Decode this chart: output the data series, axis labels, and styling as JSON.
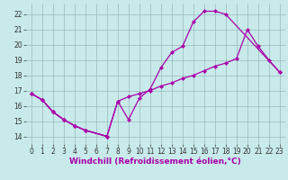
{
  "background_color": "#c8eaea",
  "grid_color": "#9bbaba",
  "line_color": "#aa00aa",
  "marker": "D",
  "marker_size": 2.5,
  "line_width": 0.9,
  "xlabel": "Windchill (Refroidissement éolien,°C)",
  "xlabel_fontsize": 6.5,
  "tick_fontsize": 5.5,
  "xlim": [
    -0.5,
    23.5
  ],
  "ylim": [
    13.5,
    22.7
  ],
  "xticks": [
    0,
    1,
    2,
    3,
    4,
    5,
    6,
    7,
    8,
    9,
    10,
    11,
    12,
    13,
    14,
    15,
    16,
    17,
    18,
    19,
    20,
    21,
    22,
    23
  ],
  "yticks": [
    14,
    15,
    16,
    17,
    18,
    19,
    20,
    21,
    22
  ],
  "line1_x": [
    0,
    1,
    2,
    3,
    4,
    5,
    7
  ],
  "line1_y": [
    16.8,
    16.4,
    15.6,
    15.1,
    14.7,
    14.4,
    14.0
  ],
  "line2_x": [
    0,
    1,
    2,
    3,
    4,
    5,
    7,
    8,
    9,
    10,
    11,
    12,
    13,
    14,
    15,
    16,
    17,
    18,
    23
  ],
  "line2_y": [
    16.8,
    16.4,
    15.6,
    15.1,
    14.7,
    14.4,
    14.0,
    16.3,
    15.1,
    16.5,
    17.1,
    18.5,
    19.5,
    19.9,
    21.5,
    22.2,
    22.2,
    22.0,
    18.2
  ],
  "line3_x": [
    0,
    1,
    2,
    3,
    4,
    5,
    7,
    8,
    9,
    10,
    11,
    12,
    13,
    14,
    15,
    16,
    17,
    18,
    19,
    20,
    21,
    22,
    23
  ],
  "line3_y": [
    16.8,
    16.4,
    15.6,
    15.1,
    14.7,
    14.4,
    14.0,
    16.3,
    16.6,
    16.8,
    17.0,
    17.3,
    17.5,
    17.8,
    18.0,
    18.3,
    18.6,
    18.8,
    19.1,
    21.0,
    19.9,
    19.0,
    18.2
  ]
}
